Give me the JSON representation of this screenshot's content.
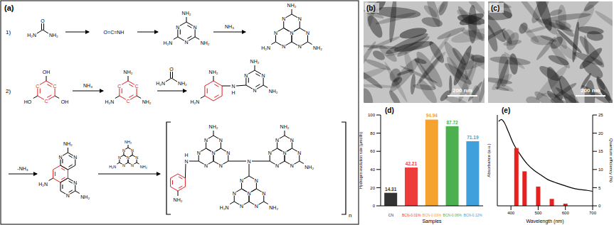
{
  "scheme": {
    "label": "(a)",
    "route_labels": [
      "1)",
      "2)"
    ],
    "urea": {
      "carbonyl": "O",
      "left": "H₂N",
      "right": "NH₂"
    },
    "isocyanic_acid": "O=C=NH",
    "ammonia": "NH₃",
    "triazine_atom": "N",
    "benzene_atom": "C",
    "amine": "NH₂",
    "amine_left": "H₂N",
    "hydroxyl": "OH",
    "hydroxyl_left": "HO",
    "bridge": "N",
    "bridge_h": "H",
    "elimination": "-NH₃",
    "repeat": "n"
  },
  "images": [
    {
      "label": "(b)",
      "scale_bar": "200 nm"
    },
    {
      "label": "(c)",
      "scale_bar": "200 nm"
    }
  ],
  "chart_data": [
    {
      "type": "bar",
      "title": "(d)",
      "categories": [
        "CN",
        "BCN-0.01%",
        "BCN-0.03%",
        "BCN-0.06%",
        "BCN-0.12%"
      ],
      "values": [
        14.31,
        42.21,
        94.94,
        87.72,
        71.19
      ],
      "colors": [
        "#333333",
        "#ee3b3b",
        "#f6a22f",
        "#4cb04f",
        "#3fa0dc"
      ],
      "xlabel": "Samples",
      "ylabel": "Hydrogen evolution rate (μmol/h)",
      "ylim": [
        0,
        100
      ],
      "yticks": [
        0,
        20,
        40,
        60,
        80,
        100
      ],
      "data_labels": true
    },
    {
      "type": "composed",
      "title": "(e)",
      "xlabel": "Wavelength (nm)",
      "ylabel": "Absorbance (a.u.)",
      "y2label": "Quantum efficiency (%)",
      "xlim": [
        350,
        700
      ],
      "xticks": [
        400,
        500,
        600,
        700
      ],
      "ylim": [
        0,
        1
      ],
      "yticks": [],
      "y2lim": [
        0,
        25
      ],
      "y2ticks": [
        0,
        5,
        10,
        15,
        20,
        25
      ],
      "series": [
        {
          "type": "line",
          "color": "#000000",
          "x": [
            355,
            365,
            375,
            390,
            410,
            435,
            460,
            485,
            510,
            535,
            560,
            590,
            620,
            650,
            680,
            700
          ],
          "values": [
            0.93,
            0.95,
            0.92,
            0.82,
            0.68,
            0.56,
            0.46,
            0.39,
            0.34,
            0.29,
            0.26,
            0.23,
            0.2,
            0.18,
            0.17,
            0.16
          ]
        },
        {
          "type": "bar",
          "axis": "y2",
          "color": "#e8211f",
          "x": [
            420,
            450,
            500,
            550,
            600
          ],
          "values": [
            15.9,
            9.5,
            5.3,
            1.9,
            0.6
          ]
        }
      ]
    }
  ]
}
